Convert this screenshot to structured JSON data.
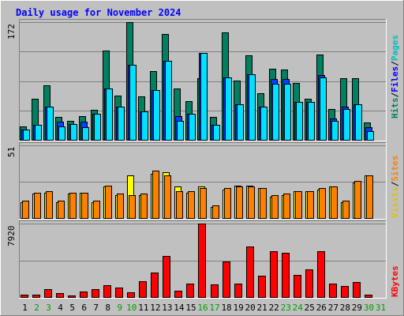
{
  "title": "Daily usage for November 2024",
  "colors": {
    "background": "#c0c0c0",
    "title": "#0000ff",
    "hits": "#008060",
    "files": "#00c0ff",
    "pages": "#00e0ff",
    "visits": "#ffff00",
    "sites": "#ff8000",
    "kbytes": "#ff0000",
    "weekday_label": "#000000",
    "weekend_label": "#00a000"
  },
  "legend": {
    "top": [
      {
        "text": "Hits",
        "color": "#008060"
      },
      {
        "text": "/",
        "color": "#000000"
      },
      {
        "text": "Files",
        "color": "#0000ff"
      },
      {
        "text": "/",
        "color": "#000000"
      },
      {
        "text": "Pages",
        "color": "#00c0c0"
      }
    ],
    "middle": [
      {
        "text": "Visits",
        "color": "#e0c000"
      },
      {
        "text": "/",
        "color": "#000000"
      },
      {
        "text": "Sites",
        "color": "#ff8000"
      }
    ],
    "bottom": [
      {
        "text": "KBytes",
        "color": "#ff0000"
      }
    ]
  },
  "chart_data": {
    "type": "bar",
    "title": "Daily usage for November 2024",
    "x": [
      "1",
      "2",
      "3",
      "4",
      "5",
      "6",
      "7",
      "8",
      "9",
      "10",
      "11",
      "12",
      "13",
      "14",
      "15",
      "16",
      "17",
      "18",
      "19",
      "20",
      "21",
      "22",
      "23",
      "24",
      "25",
      "26",
      "27",
      "28",
      "29",
      "30",
      "31"
    ],
    "weekend_days": [
      "2",
      "3",
      "9",
      "10",
      "16",
      "17",
      "23",
      "24",
      "30",
      "31"
    ],
    "panels": [
      {
        "name": "hits-files-pages",
        "max_label": "172",
        "ylim": [
          0,
          172
        ],
        "series": [
          {
            "name": "Hits",
            "values": [
              20,
              60,
              80,
              33,
              28,
              35,
              44,
              130,
              65,
              172,
              64,
              100,
              155,
              75,
              56,
              90,
              33,
              157,
              87,
              123,
              68,
              104,
              103,
              83,
              60,
              125,
              45,
              90,
              90,
              25,
              0
            ]
          },
          {
            "name": "Files",
            "values": [
              15,
              22,
              49,
              26,
              23,
              26,
              38,
              75,
              49,
              110,
              42,
              73,
              115,
              35,
              38,
              127,
              22,
              91,
              52,
              96,
              48,
              89,
              89,
              55,
              55,
              95,
              31,
              49,
              52,
              19,
              0
            ]
          },
          {
            "name": "Pages",
            "values": [
              15,
              22,
              49,
              20,
              23,
              19,
              38,
              75,
              49,
              110,
              42,
              73,
              115,
              28,
              38,
              127,
              22,
              91,
              52,
              96,
              48,
              82,
              82,
              55,
              55,
              91,
              28,
              45,
              52,
              13,
              0
            ]
          }
        ]
      },
      {
        "name": "visits-sites",
        "max_label": "51",
        "ylim": [
          0,
          51
        ],
        "series": [
          {
            "name": "Visits",
            "values": [
              11,
              17,
              18,
              11,
              17,
              18,
              11,
              22,
              16,
              30,
              16,
              31,
              32,
              22,
              18,
              22,
              8,
              20,
              23,
              23,
              21,
              15,
              16,
              19,
              19,
              20,
              22,
              11,
              25,
              30,
              0
            ]
          },
          {
            "name": "Sites",
            "values": [
              12,
              18,
              19,
              12,
              18,
              18,
              12,
              23,
              17,
              16,
              17,
              33,
              30,
              19,
              19,
              21,
              9,
              21,
              22,
              22,
              21,
              16,
              17,
              19,
              19,
              21,
              22,
              12,
              26,
              30,
              0
            ]
          }
        ]
      },
      {
        "name": "kbytes",
        "max_label": "7920",
        "ylim": [
          0,
          7920
        ],
        "series": [
          {
            "name": "KBytes",
            "values": [
              230,
              220,
              860,
              430,
              180,
              570,
              850,
              1290,
              1060,
              480,
              1730,
              2600,
              4450,
              650,
              1470,
              7920,
              1370,
              3860,
              1450,
              5430,
              2280,
              4950,
              4740,
              2390,
              3020,
              4960,
              1420,
              1160,
              1600,
              280,
              0
            ]
          }
        ]
      }
    ]
  }
}
